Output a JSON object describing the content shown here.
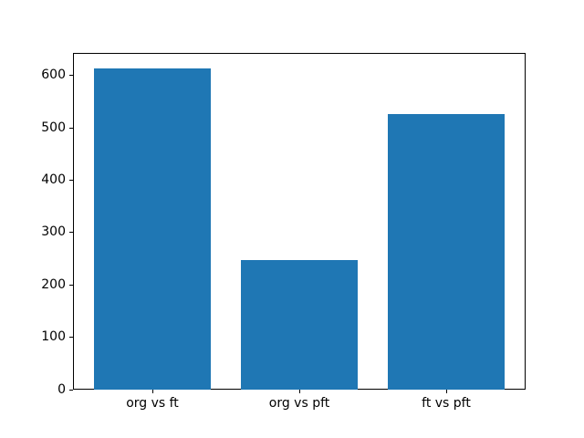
{
  "chart_data": {
    "type": "bar",
    "categories": [
      "org vs ft",
      "org vs pft",
      "ft vs pft"
    ],
    "values": [
      613,
      247,
      527
    ],
    "title": "",
    "xlabel": "",
    "ylabel": "",
    "ylim": [
      0,
      643.65
    ],
    "xlim": [
      -0.54,
      2.54
    ],
    "yticks": [
      0,
      100,
      200,
      300,
      400,
      500,
      600
    ],
    "bar_width": 0.8,
    "bar_color": "#1f77b4",
    "spine_color": "#000000",
    "tick_color": "#000000",
    "figure_background": "#ffffff",
    "axes_background": "#ffffff",
    "grid": false,
    "legend": false
  }
}
